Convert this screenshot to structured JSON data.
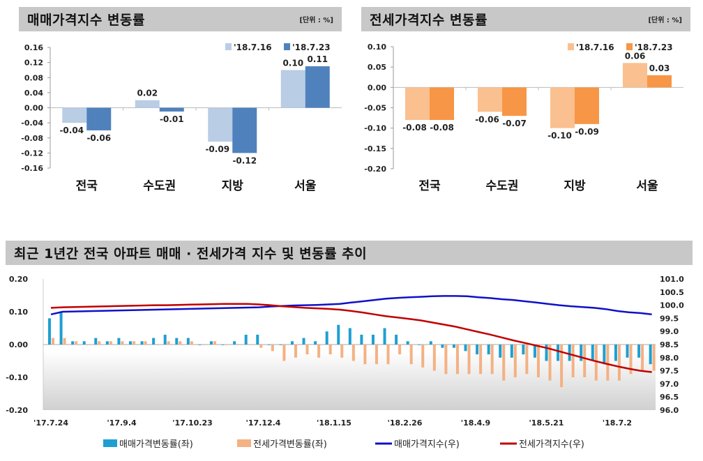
{
  "panels": {
    "sale": {
      "title": "매매가격지수 변동률",
      "unit": "[단위 : %]"
    },
    "jeonse": {
      "title": "전세가격지수 변동률",
      "unit": "[단위 : %]"
    },
    "trend": {
      "title": "최근 1년간 전국 아파트 매매 · 전세가격 지수 및 변동률 추이"
    }
  },
  "colors": {
    "sale_prev": "#b9cde5",
    "sale_curr": "#4f81bd",
    "jeonse_prev": "#fac090",
    "jeonse_curr": "#f79646",
    "trend_sale_bar": "#1e9fd2",
    "trend_jeonse_bar": "#f4b183",
    "trend_sale_line": "#1010c8",
    "trend_jeonse_line": "#c00000"
  },
  "chart_data": [
    {
      "type": "bar",
      "categories": [
        "전국",
        "수도권",
        "지방",
        "서울"
      ],
      "series": [
        {
          "name": "'18.7.16",
          "values": [
            -0.04,
            0.02,
            -0.09,
            0.1
          ]
        },
        {
          "name": "'18.7.23",
          "values": [
            -0.06,
            -0.01,
            -0.12,
            0.11
          ]
        }
      ],
      "data_labels": [
        [
          "-0.04",
          "0.02",
          "-0.09",
          "0.10"
        ],
        [
          "-0.06",
          "-0.01",
          "-0.12",
          "0.11"
        ]
      ],
      "yticks": [
        "0.16",
        "0.12",
        "0.08",
        "0.04",
        "0.00",
        "-0.04",
        "-0.08",
        "-0.12",
        "-0.16"
      ],
      "ylim": [
        -0.16,
        0.16
      ],
      "legend": "top-right",
      "grid": false
    },
    {
      "type": "bar",
      "categories": [
        "전국",
        "수도권",
        "지방",
        "서울"
      ],
      "series": [
        {
          "name": "'18.7.16",
          "values": [
            -0.08,
            -0.06,
            -0.1,
            0.06
          ]
        },
        {
          "name": "'18.7.23",
          "values": [
            -0.08,
            -0.07,
            -0.09,
            0.03
          ]
        }
      ],
      "data_labels": [
        [
          "-0.08",
          "-0.06",
          "-0.10",
          "0.06"
        ],
        [
          "-0.08",
          "-0.07",
          "-0.09",
          "0.03"
        ]
      ],
      "yticks": [
        "0.10",
        "0.05",
        "0.00",
        "-0.05",
        "-0.10",
        "-0.15",
        "-0.20"
      ],
      "ylim": [
        -0.2,
        0.1
      ],
      "legend": "top-right",
      "grid": false
    },
    {
      "type": "bar+line",
      "x_ticks": [
        "'17.7.24",
        "'17.9.4",
        "'17.10.23",
        "'17.12.4",
        "'18.1.15",
        "'18.2.26",
        "'18.4.9",
        "'18.5.21",
        "'18.7.2"
      ],
      "x_range": [
        "'17.7.24",
        "'18.7.23"
      ],
      "x_step": "weekly",
      "yticks_left": [
        "0.20",
        "0.10",
        "0.00",
        "-0.10",
        "-0.20"
      ],
      "ylim_left": [
        -0.2,
        0.2
      ],
      "yticks_right": [
        "101.0",
        "100.5",
        "100.0",
        "99.5",
        "99.0",
        "98.5",
        "98.0",
        "97.5",
        "97.0",
        "96.5",
        "96.0"
      ],
      "ylim_right": [
        96.0,
        101.0
      ],
      "legend": "bottom",
      "grid": false,
      "series": [
        {
          "name": "매매가격변동률(좌)",
          "kind": "bar",
          "axis": "left",
          "values": [
            0.08,
            0.1,
            0.01,
            0.01,
            0.02,
            0.01,
            0.02,
            0.01,
            0.01,
            0.02,
            0.03,
            0.02,
            0.02,
            0.0,
            0.01,
            0.0,
            0.01,
            0.03,
            0.03,
            0.0,
            0.0,
            0.01,
            0.02,
            0.01,
            0.04,
            0.06,
            0.05,
            0.03,
            0.03,
            0.05,
            0.03,
            0.01,
            0.0,
            0.01,
            -0.01,
            -0.01,
            -0.02,
            -0.03,
            -0.03,
            -0.04,
            -0.04,
            -0.03,
            -0.04,
            -0.05,
            -0.05,
            -0.05,
            -0.05,
            -0.05,
            -0.06,
            -0.05,
            -0.04,
            -0.04,
            -0.06
          ]
        },
        {
          "name": "전세가격변동률(좌)",
          "kind": "bar",
          "axis": "left",
          "values": [
            0.02,
            0.02,
            0.01,
            0.0,
            0.01,
            0.01,
            0.01,
            0.01,
            0.01,
            0.0,
            0.01,
            0.01,
            0.01,
            0.0,
            0.01,
            0.0,
            0.0,
            0.0,
            -0.01,
            -0.02,
            -0.05,
            -0.04,
            -0.03,
            -0.04,
            -0.03,
            -0.04,
            -0.05,
            -0.06,
            -0.06,
            -0.06,
            -0.03,
            -0.06,
            -0.07,
            -0.08,
            -0.09,
            -0.09,
            -0.09,
            -0.09,
            -0.09,
            -0.11,
            -0.1,
            -0.09,
            -0.1,
            -0.11,
            -0.13,
            -0.1,
            -0.1,
            -0.11,
            -0.11,
            -0.11,
            -0.09,
            -0.08,
            -0.08
          ]
        },
        {
          "name": "매매가격지수(우)",
          "kind": "line",
          "axis": "right",
          "values": [
            99.65,
            99.75,
            99.76,
            99.77,
            99.78,
            99.79,
            99.8,
            99.81,
            99.82,
            99.83,
            99.84,
            99.85,
            99.86,
            99.87,
            99.88,
            99.89,
            99.9,
            99.91,
            99.92,
            99.95,
            99.97,
            99.99,
            100.0,
            100.01,
            100.03,
            100.05,
            100.1,
            100.15,
            100.2,
            100.25,
            100.28,
            100.3,
            100.32,
            100.34,
            100.35,
            100.35,
            100.34,
            100.3,
            100.27,
            100.23,
            100.2,
            100.15,
            100.1,
            100.05,
            100.0,
            99.96,
            99.93,
            99.9,
            99.85,
            99.78,
            99.73,
            99.7,
            99.65
          ]
        },
        {
          "name": "전세가격지수(우)",
          "kind": "line",
          "axis": "right",
          "values": [
            99.9,
            99.92,
            99.93,
            99.94,
            99.95,
            99.96,
            99.97,
            99.98,
            99.99,
            100.0,
            100.0,
            100.01,
            100.02,
            100.03,
            100.04,
            100.05,
            100.05,
            100.05,
            100.03,
            100.0,
            99.96,
            99.93,
            99.9,
            99.88,
            99.86,
            99.83,
            99.78,
            99.72,
            99.65,
            99.58,
            99.53,
            99.48,
            99.42,
            99.34,
            99.26,
            99.18,
            99.08,
            98.98,
            98.88,
            98.77,
            98.66,
            98.56,
            98.46,
            98.36,
            98.24,
            98.12,
            98.0,
            97.88,
            97.77,
            97.67,
            97.58,
            97.5,
            97.45
          ]
        }
      ]
    }
  ]
}
